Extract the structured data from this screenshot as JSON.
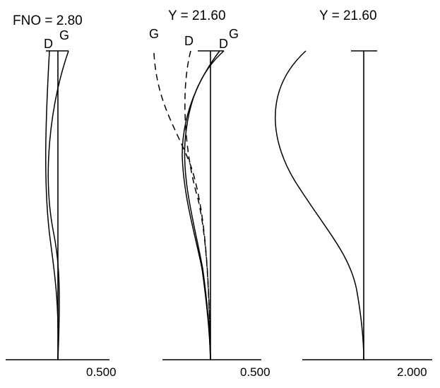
{
  "panels": {
    "spherical": {
      "title": "FNO = 2.80",
      "curve_labels": {
        "d": "D",
        "g": "G"
      },
      "scale": "0.500"
    },
    "astigmatism": {
      "title": "Y = 21.60",
      "curve_labels": {
        "g_sagittal": "G",
        "d_sagittal": "D",
        "d_meridional": "D",
        "g_meridional": "G"
      },
      "scale": "0.500"
    },
    "distortion": {
      "title": "Y = 21.60",
      "scale": "2.000"
    }
  }
}
